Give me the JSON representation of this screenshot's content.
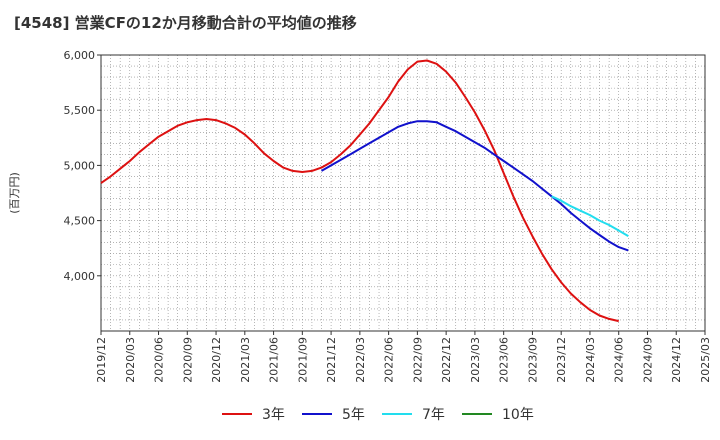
{
  "chart_data": {
    "type": "line",
    "title": "[4548]  営業CFの12か月移動合計の平均値の推移",
    "ylabel": "(百万円)",
    "xlabel": "",
    "ylim": [
      3500,
      6000
    ],
    "y_ticks": [
      4000,
      4500,
      5000,
      5500,
      6000
    ],
    "y_tick_labels": [
      "4,000",
      "4,500",
      "5,000",
      "5,500",
      "6,000"
    ],
    "x_ticks": [
      "2019/12",
      "2020/03",
      "2020/06",
      "2020/09",
      "2020/12",
      "2021/03",
      "2021/06",
      "2021/09",
      "2021/12",
      "2022/03",
      "2022/06",
      "2022/09",
      "2022/12",
      "2023/03",
      "2023/06",
      "2023/09",
      "2023/12",
      "2024/03",
      "2024/06",
      "2024/09",
      "2024/12",
      "2025/03"
    ],
    "grid": true,
    "legend_position": "bottom",
    "series": [
      {
        "name": "3年",
        "color": "#dd1111",
        "points": [
          [
            "2019/12",
            4840
          ],
          [
            "2020/01",
            4900
          ],
          [
            "2020/02",
            4970
          ],
          [
            "2020/03",
            5040
          ],
          [
            "2020/04",
            5120
          ],
          [
            "2020/05",
            5190
          ],
          [
            "2020/06",
            5260
          ],
          [
            "2020/07",
            5310
          ],
          [
            "2020/08",
            5360
          ],
          [
            "2020/09",
            5390
          ],
          [
            "2020/10",
            5410
          ],
          [
            "2020/11",
            5420
          ],
          [
            "2020/12",
            5410
          ],
          [
            "2021/01",
            5380
          ],
          [
            "2021/02",
            5340
          ],
          [
            "2021/03",
            5280
          ],
          [
            "2021/04",
            5200
          ],
          [
            "2021/05",
            5110
          ],
          [
            "2021/06",
            5040
          ],
          [
            "2021/07",
            4980
          ],
          [
            "2021/08",
            4950
          ],
          [
            "2021/09",
            4940
          ],
          [
            "2021/10",
            4950
          ],
          [
            "2021/11",
            4980
          ],
          [
            "2021/12",
            5030
          ],
          [
            "2022/01",
            5100
          ],
          [
            "2022/02",
            5180
          ],
          [
            "2022/03",
            5280
          ],
          [
            "2022/04",
            5380
          ],
          [
            "2022/05",
            5500
          ],
          [
            "2022/06",
            5620
          ],
          [
            "2022/07",
            5760
          ],
          [
            "2022/08",
            5870
          ],
          [
            "2022/09",
            5940
          ],
          [
            "2022/10",
            5950
          ],
          [
            "2022/11",
            5920
          ],
          [
            "2022/12",
            5850
          ],
          [
            "2023/01",
            5750
          ],
          [
            "2023/02",
            5620
          ],
          [
            "2023/03",
            5480
          ],
          [
            "2023/04",
            5320
          ],
          [
            "2023/05",
            5140
          ],
          [
            "2023/06",
            4930
          ],
          [
            "2023/07",
            4720
          ],
          [
            "2023/08",
            4530
          ],
          [
            "2023/09",
            4360
          ],
          [
            "2023/10",
            4200
          ],
          [
            "2023/11",
            4060
          ],
          [
            "2023/12",
            3940
          ],
          [
            "2024/01",
            3840
          ],
          [
            "2024/02",
            3760
          ],
          [
            "2024/03",
            3690
          ],
          [
            "2024/04",
            3640
          ],
          [
            "2024/05",
            3610
          ],
          [
            "2024/06",
            3590
          ]
        ]
      },
      {
        "name": "5年",
        "color": "#1111cc",
        "points": [
          [
            "2021/11",
            4950
          ],
          [
            "2021/12",
            5000
          ],
          [
            "2022/01",
            5050
          ],
          [
            "2022/02",
            5100
          ],
          [
            "2022/03",
            5150
          ],
          [
            "2022/04",
            5200
          ],
          [
            "2022/05",
            5250
          ],
          [
            "2022/06",
            5300
          ],
          [
            "2022/07",
            5350
          ],
          [
            "2022/08",
            5380
          ],
          [
            "2022/09",
            5400
          ],
          [
            "2022/10",
            5400
          ],
          [
            "2022/11",
            5390
          ],
          [
            "2022/12",
            5350
          ],
          [
            "2023/01",
            5310
          ],
          [
            "2023/02",
            5260
          ],
          [
            "2023/03",
            5210
          ],
          [
            "2023/04",
            5160
          ],
          [
            "2023/05",
            5100
          ],
          [
            "2023/06",
            5040
          ],
          [
            "2023/07",
            4980
          ],
          [
            "2023/08",
            4920
          ],
          [
            "2023/09",
            4860
          ],
          [
            "2023/10",
            4790
          ],
          [
            "2023/11",
            4720
          ],
          [
            "2023/12",
            4650
          ],
          [
            "2024/01",
            4570
          ],
          [
            "2024/02",
            4500
          ],
          [
            "2024/03",
            4430
          ],
          [
            "2024/04",
            4370
          ],
          [
            "2024/05",
            4310
          ],
          [
            "2024/06",
            4260
          ],
          [
            "2024/07",
            4230
          ]
        ]
      },
      {
        "name": "7年",
        "color": "#22ddee",
        "points": [
          [
            "2023/11",
            4720
          ],
          [
            "2023/12",
            4680
          ],
          [
            "2024/01",
            4630
          ],
          [
            "2024/02",
            4590
          ],
          [
            "2024/03",
            4550
          ],
          [
            "2024/04",
            4500
          ],
          [
            "2024/05",
            4460
          ],
          [
            "2024/06",
            4410
          ],
          [
            "2024/07",
            4360
          ]
        ]
      },
      {
        "name": "10年",
        "color": "#228822",
        "points": []
      }
    ]
  }
}
